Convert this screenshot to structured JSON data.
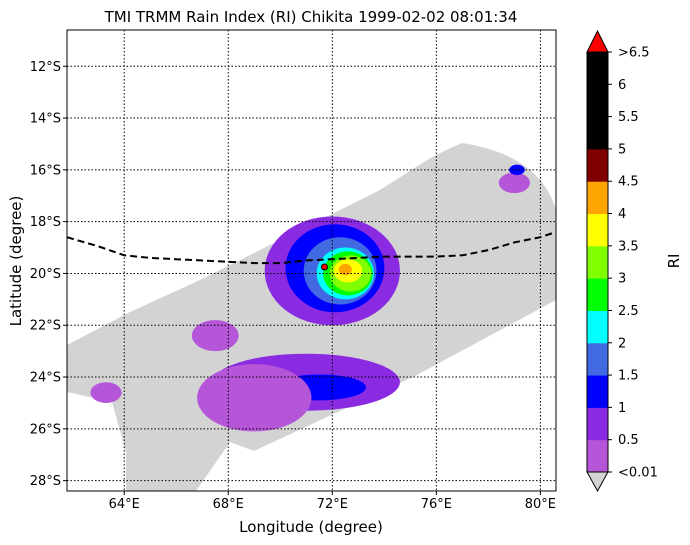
{
  "title": "TMI TRMM Rain Index (RI) Chikita 1999-02-02 08:01:34",
  "xlabel": "Longitude (degree)",
  "ylabel": "Latitude (degree)",
  "x_ticks": [
    {
      "value": 64,
      "label": "64°E"
    },
    {
      "value": 68,
      "label": "68°E"
    },
    {
      "value": 72,
      "label": "72°E"
    },
    {
      "value": 76,
      "label": "76°E"
    },
    {
      "value": 80,
      "label": "80°E"
    }
  ],
  "y_ticks": [
    {
      "value": -12,
      "label": "12°S"
    },
    {
      "value": -14,
      "label": "14°S"
    },
    {
      "value": -16,
      "label": "16°S"
    },
    {
      "value": -18,
      "label": "18°S"
    },
    {
      "value": -20,
      "label": "20°S"
    },
    {
      "value": -22,
      "label": "22°S"
    },
    {
      "value": -24,
      "label": "24°S"
    },
    {
      "value": -26,
      "label": "26°S"
    },
    {
      "value": -28,
      "label": "28°S"
    }
  ],
  "colorbar": {
    "label": "RI",
    "tick_labels": [
      "<0.01",
      "0.5",
      "1",
      "1.5",
      "2",
      "2.5",
      "3",
      "3.5",
      "4",
      "4.5",
      "5",
      "5.5",
      "6",
      ">6.5"
    ],
    "bands": [
      "#b556d9",
      "#8a2be2",
      "#0000ff",
      "#4169e1",
      "#00ffff",
      "#00ff00",
      "#7fff00",
      "#ffff00",
      "#ffa500",
      "#800000",
      "#000000",
      "#000000",
      "#000000"
    ],
    "under_color": "#d3d3d3",
    "over_color": "#ff0000"
  },
  "chart_data": {
    "type": "map",
    "xlim": [
      61.8,
      80.6
    ],
    "ylim": [
      -28.4,
      -10.6
    ],
    "grid": true,
    "swath_color": "#d3d3d3",
    "track": [
      [
        61.8,
        -18.6
      ],
      [
        63.0,
        -18.95
      ],
      [
        64.0,
        -19.3
      ],
      [
        65.0,
        -19.4
      ],
      [
        66.0,
        -19.45
      ],
      [
        67.0,
        -19.5
      ],
      [
        68.0,
        -19.55
      ],
      [
        69.0,
        -19.6
      ],
      [
        70.0,
        -19.6
      ],
      [
        71.0,
        -19.5
      ],
      [
        72.0,
        -19.45
      ],
      [
        73.0,
        -19.4
      ],
      [
        74.0,
        -19.35
      ],
      [
        75.0,
        -19.35
      ],
      [
        76.0,
        -19.35
      ],
      [
        77.0,
        -19.3
      ],
      [
        78.0,
        -19.1
      ],
      [
        79.0,
        -18.8
      ],
      [
        80.0,
        -18.6
      ],
      [
        80.6,
        -18.4
      ]
    ],
    "storm_center": [
      71.7,
      -19.75
    ],
    "rain_regions": [
      {
        "ri": 0.5,
        "cx": 72.0,
        "cy": -19.9,
        "rx": 2.6,
        "ry": 2.1
      },
      {
        "ri": 1.0,
        "cx": 72.1,
        "cy": -19.8,
        "rx": 1.9,
        "ry": 1.7
      },
      {
        "ri": 1.5,
        "cx": 72.3,
        "cy": -19.9,
        "rx": 1.4,
        "ry": 1.3
      },
      {
        "ri": 2.0,
        "cx": 72.5,
        "cy": -20.0,
        "rx": 1.1,
        "ry": 1.0
      },
      {
        "ri": 2.5,
        "cx": 72.6,
        "cy": -20.0,
        "rx": 0.95,
        "ry": 0.85
      },
      {
        "ri": 3.0,
        "cx": 72.7,
        "cy": -20.0,
        "rx": 0.8,
        "ry": 0.7
      },
      {
        "ri": 3.5,
        "cx": 72.6,
        "cy": -19.9,
        "rx": 0.55,
        "ry": 0.45
      },
      {
        "ri": 4.0,
        "cx": 72.5,
        "cy": -19.85,
        "rx": 0.25,
        "ry": 0.22
      },
      {
        "ri": 0.5,
        "cx": 71.0,
        "cy": -24.2,
        "rx": 3.6,
        "ry": 1.1
      },
      {
        "ri": 1.0,
        "cx": 71.5,
        "cy": -24.4,
        "rx": 1.8,
        "ry": 0.5
      },
      {
        "ri": 0.01,
        "cx": 69.0,
        "cy": -24.8,
        "rx": 2.2,
        "ry": 1.3
      },
      {
        "ri": 0.01,
        "cx": 67.5,
        "cy": -22.4,
        "rx": 0.9,
        "ry": 0.6
      },
      {
        "ri": 0.01,
        "cx": 63.3,
        "cy": -24.6,
        "rx": 0.6,
        "ry": 0.4
      },
      {
        "ri": 0.01,
        "cx": 79.0,
        "cy": -16.5,
        "rx": 0.6,
        "ry": 0.4
      },
      {
        "ri": 1.0,
        "cx": 79.1,
        "cy": -16.0,
        "rx": 0.3,
        "ry": 0.2
      }
    ]
  }
}
